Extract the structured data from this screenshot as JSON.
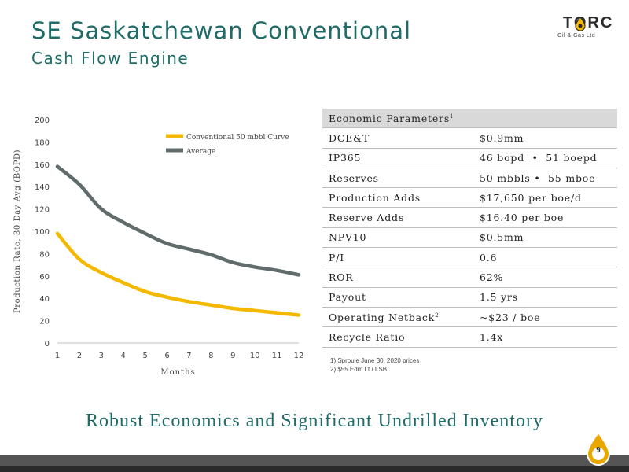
{
  "title": "SE Saskatchewan Conventional",
  "subtitle": "Cash Flow Engine",
  "logo": {
    "name": "TORC",
    "sub": "Oil & Gas Ltd"
  },
  "colors": {
    "accent_teal": "#1e6b68",
    "series_yellow": "#f5b800",
    "series_grey": "#606b6b"
  },
  "chart_data": {
    "type": "line",
    "x": [
      1,
      2,
      3,
      4,
      5,
      6,
      7,
      8,
      9,
      10,
      11,
      12
    ],
    "xlabel": "Months",
    "ylabel": "Production Rate, 30 Day Avg (BOPD)",
    "ylim": [
      0,
      200
    ],
    "yticks": [
      0,
      20,
      40,
      60,
      80,
      100,
      120,
      140,
      160,
      180,
      200
    ],
    "grid": false,
    "legend": "top-right",
    "series": [
      {
        "name": "Conventional 50 mbbl Curve",
        "color": "#f5b800",
        "values": [
          98,
          75,
          63,
          54,
          46,
          41,
          37,
          34,
          31,
          29,
          27,
          25
        ]
      },
      {
        "name": "Average",
        "color": "#606b6b",
        "values": [
          158,
          142,
          120,
          108,
          98,
          89,
          84,
          79,
          72,
          68,
          65,
          61
        ]
      }
    ]
  },
  "table": {
    "header": "Economic Parameters",
    "header_sup": "1",
    "rows": [
      {
        "label": "DCE&T",
        "value": "$0.9mm"
      },
      {
        "label": "IP365",
        "value": "46 bopd  •  51 boepd"
      },
      {
        "label": "Reserves",
        "value": "50 mbbls •  55 mboe"
      },
      {
        "label": "Production Adds",
        "value": "$17,650 per boe/d"
      },
      {
        "label": "Reserve Adds",
        "value": "$16.40 per boe"
      },
      {
        "label": "NPV10",
        "value": "$0.5mm"
      },
      {
        "label": "P/I",
        "value": "0.6"
      },
      {
        "label": "ROR",
        "value": "62%"
      },
      {
        "label": "Payout",
        "value": "1.5 yrs"
      },
      {
        "label": "Operating Netback",
        "label_sup": "2",
        "value": "~$23 / boe"
      },
      {
        "label": "Recycle Ratio",
        "value": "1.4x"
      }
    ]
  },
  "footnotes": [
    "1)   Sproule June 30, 2020 prices",
    "2)   $55 Edm Lt / LSB"
  ],
  "tagline": "Robust Economics and Significant Undrilled Inventory",
  "page_number": "9"
}
